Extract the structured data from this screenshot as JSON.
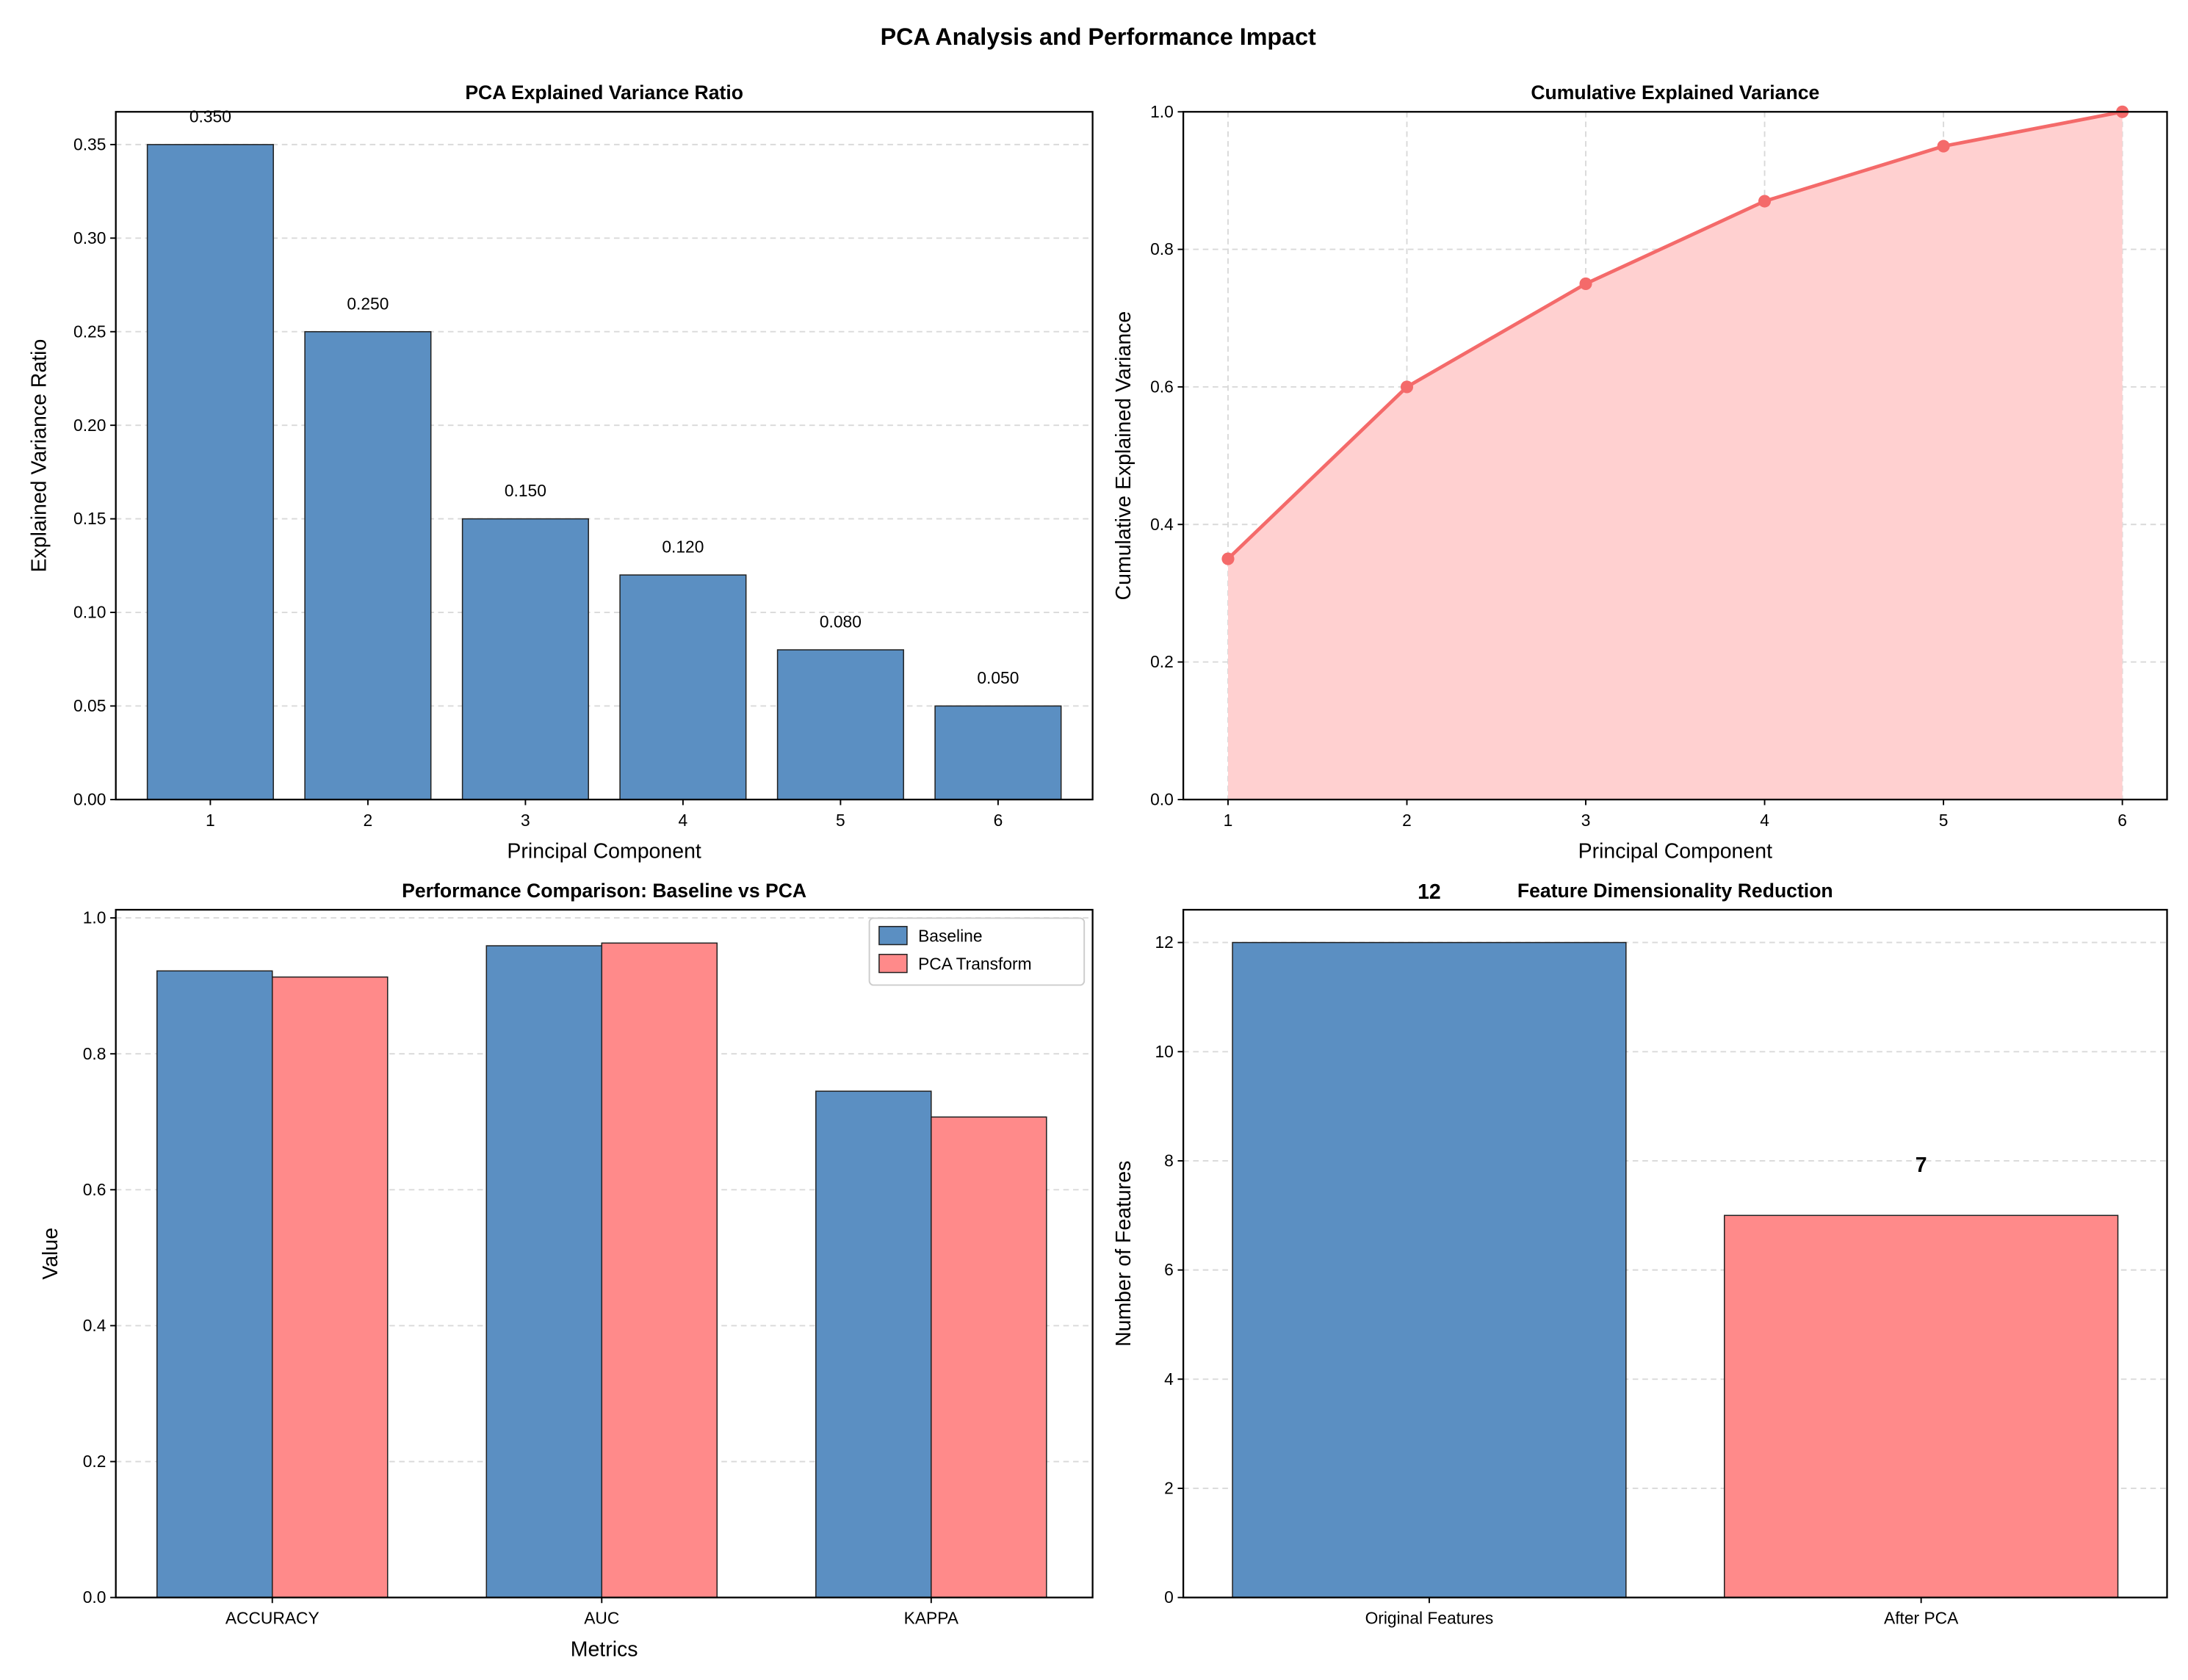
{
  "suptitle": "PCA Analysis and Performance Impact",
  "colors": {
    "blue": "#5b8fc2",
    "red": "#ff8a8a",
    "line": "#f46a6a",
    "fill": "#ffd0d0"
  },
  "chart_data": [
    {
      "type": "bar",
      "title": "PCA Explained Variance Ratio",
      "xlabel": "Principal Component",
      "ylabel": "Explained Variance Ratio",
      "categories": [
        "1",
        "2",
        "3",
        "4",
        "5",
        "6"
      ],
      "x": [
        1,
        2,
        3,
        4,
        5,
        6
      ],
      "values": [
        0.35,
        0.25,
        0.15,
        0.12,
        0.08,
        0.05
      ],
      "data_labels": [
        "0.350",
        "0.250",
        "0.150",
        "0.120",
        "0.080",
        "0.050"
      ],
      "yticks": [
        "0.00",
        "0.05",
        "0.10",
        "0.15",
        "0.20",
        "0.25",
        "0.30",
        "0.35"
      ],
      "ylim": [
        0,
        0.3675
      ],
      "xlim": [
        0.4,
        6.6
      ],
      "grid": true
    },
    {
      "type": "area",
      "title": "Cumulative Explained Variance",
      "xlabel": "Principal Component",
      "ylabel": "Cumulative Explained Variance",
      "x": [
        1,
        2,
        3,
        4,
        5,
        6
      ],
      "xticks": [
        "1",
        "2",
        "3",
        "4",
        "5",
        "6"
      ],
      "values": [
        0.35,
        0.6,
        0.75,
        0.87,
        0.95,
        1.0
      ],
      "yticks": [
        "0.0",
        "0.2",
        "0.4",
        "0.6",
        "0.8",
        "1.0"
      ],
      "ylim": [
        0,
        1
      ],
      "xlim": [
        0.75,
        6.25
      ],
      "grid": true
    },
    {
      "type": "bar",
      "title": "Performance Comparison: Baseline vs PCA",
      "xlabel": "Metrics",
      "ylabel": "Value",
      "categories": [
        "ACCURACY",
        "AUC",
        "KAPPA"
      ],
      "series": [
        {
          "name": "Baseline",
          "values": [
            0.922,
            0.959,
            0.745
          ]
        },
        {
          "name": "PCA Transform",
          "values": [
            0.913,
            0.963,
            0.707
          ]
        }
      ],
      "yticks": [
        "0.0",
        "0.2",
        "0.4",
        "0.6",
        "0.8",
        "1.0"
      ],
      "ylim": [
        0,
        1.012
      ],
      "xlim": [
        -0.475,
        2.49
      ],
      "legend": "top-right",
      "grid": true
    },
    {
      "type": "bar",
      "title": "Feature Dimensionality Reduction",
      "xlabel": "",
      "ylabel": "Number of Features",
      "categories": [
        "Original Features",
        "After PCA"
      ],
      "values": [
        12,
        7
      ],
      "data_labels": [
        "12",
        "7"
      ],
      "yticks": [
        "0",
        "2",
        "4",
        "6",
        "8",
        "10",
        "12"
      ],
      "ylim": [
        0,
        12.6
      ],
      "xlim": [
        -0.5,
        1.5
      ],
      "grid": true
    }
  ]
}
